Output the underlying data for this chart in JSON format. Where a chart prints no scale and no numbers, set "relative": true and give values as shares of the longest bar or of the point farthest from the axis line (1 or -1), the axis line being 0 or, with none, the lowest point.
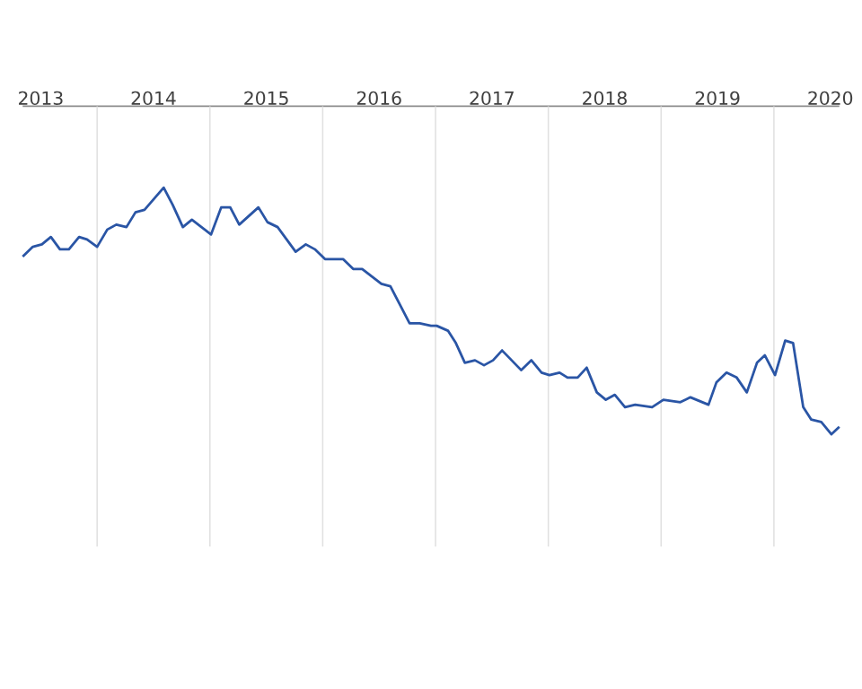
{
  "chart_data": {
    "type": "line",
    "relative": true,
    "grid": "x",
    "tick_labels": "x",
    "xlim": [
      2013.34,
      2020.58
    ],
    "xticks": [
      {
        "value": 2013.5,
        "label": "2013"
      },
      {
        "value": 2014.5,
        "label": "2014"
      },
      {
        "value": 2015.5,
        "label": "2015"
      },
      {
        "value": 2016.5,
        "label": "2016"
      },
      {
        "value": 2017.5,
        "label": "2017"
      },
      {
        "value": 2018.5,
        "label": "2018"
      },
      {
        "value": 2019.5,
        "label": "2019"
      },
      {
        "value": 2020.5,
        "label": "2020"
      },
      {
        "value": 2014,
        "label": null
      },
      {
        "value": 2015,
        "label": null
      },
      {
        "value": 2016,
        "label": null
      },
      {
        "value": 2017,
        "label": null
      },
      {
        "value": 2018,
        "label": null
      },
      {
        "value": 2019,
        "label": null
      },
      {
        "value": 2020,
        "label": null
      }
    ],
    "series": [
      {
        "color": "#2a55a5",
        "x": [
          2013.34,
          2013.43,
          2013.51,
          2013.59,
          2013.67,
          2013.75,
          2013.84,
          2013.91,
          2014.0,
          2014.09,
          2014.17,
          2014.26,
          2014.34,
          2014.42,
          2014.59,
          2014.67,
          2014.76,
          2014.84,
          2015.01,
          2015.1,
          2015.18,
          2015.26,
          2015.43,
          2015.51,
          2015.6,
          2015.76,
          2015.85,
          2015.93,
          2016.02,
          2016.18,
          2016.27,
          2016.35,
          2016.52,
          2016.6,
          2016.77,
          2016.86,
          2016.96,
          2017.01,
          2017.11,
          2017.18,
          2017.26,
          2017.35,
          2017.43,
          2017.51,
          2017.59,
          2017.76,
          2017.85,
          2017.94,
          2018.01,
          2018.1,
          2018.17,
          2018.26,
          2018.34,
          2018.43,
          2018.51,
          2018.59,
          2018.68,
          2018.77,
          2018.92,
          2019.02,
          2019.17,
          2019.26,
          2019.42,
          2019.49,
          2019.58,
          2019.67,
          2019.76,
          2019.85,
          2019.92,
          2020.01,
          2020.1,
          2020.17,
          2020.26,
          2020.33,
          2020.42,
          2020.51,
          2020.58
        ],
        "values": [
          0.72,
          0.76,
          0.77,
          0.8,
          0.75,
          0.75,
          0.8,
          0.79,
          0.76,
          0.83,
          0.85,
          0.84,
          0.9,
          0.91,
          1.0,
          0.93,
          0.84,
          0.87,
          0.81,
          0.92,
          0.92,
          0.85,
          0.92,
          0.86,
          0.84,
          0.74,
          0.77,
          0.75,
          0.71,
          0.71,
          0.67,
          0.67,
          0.61,
          0.6,
          0.45,
          0.45,
          0.44,
          0.44,
          0.42,
          0.37,
          0.29,
          0.3,
          0.28,
          0.3,
          0.34,
          0.26,
          0.3,
          0.25,
          0.24,
          0.25,
          0.23,
          0.23,
          0.27,
          0.17,
          0.14,
          0.16,
          0.11,
          0.12,
          0.11,
          0.14,
          0.13,
          0.15,
          0.12,
          0.21,
          0.25,
          0.23,
          0.17,
          0.29,
          0.32,
          0.24,
          0.38,
          0.37,
          0.11,
          0.06,
          0.05,
          0.0,
          0.03
        ]
      }
    ]
  }
}
